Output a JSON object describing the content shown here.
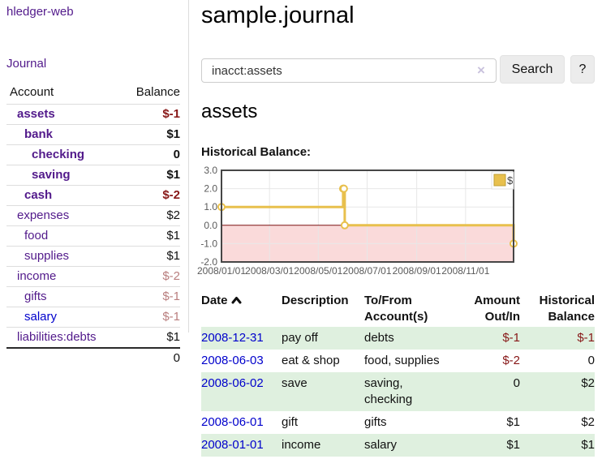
{
  "app": {
    "brand": "hledger-web"
  },
  "colors": {
    "link_purple": "#521a8b",
    "link_blue": "#0000cc",
    "negative_strong": "#871717",
    "negative_soft": "#b97e7e",
    "row_stripe_green": "#dff0df",
    "chart_gold": "#e8c04d",
    "chart_negative_region": "#fadada",
    "chart_zero_line": "#7d1010"
  },
  "sidebar": {
    "nav_journal": "Journal",
    "table": {
      "headers": {
        "account": "Account",
        "balance": "Balance"
      },
      "rows": [
        {
          "account": "assets",
          "balance": "$-1",
          "level": 0,
          "strong": true,
          "link": "purple",
          "bal": "neg-strong"
        },
        {
          "account": "bank",
          "balance": "$1",
          "level": 1,
          "strong": true,
          "link": "purple",
          "bal": "pos"
        },
        {
          "account": "checking",
          "balance": "0",
          "level": 2,
          "strong": true,
          "link": "purple",
          "bal": "pos"
        },
        {
          "account": "saving",
          "balance": "$1",
          "level": 2,
          "strong": true,
          "link": "purple",
          "bal": "pos"
        },
        {
          "account": "cash",
          "balance": "$-2",
          "level": 1,
          "strong": true,
          "link": "purple",
          "bal": "neg-strong"
        },
        {
          "account": "expenses",
          "balance": "$2",
          "level": 0,
          "strong": false,
          "link": "purple",
          "bal": "pos"
        },
        {
          "account": "food",
          "balance": "$1",
          "level": 1,
          "strong": false,
          "link": "purple",
          "bal": "pos"
        },
        {
          "account": "supplies",
          "balance": "$1",
          "level": 1,
          "strong": false,
          "link": "purple",
          "bal": "pos"
        },
        {
          "account": "income",
          "balance": "$-2",
          "level": 0,
          "strong": false,
          "link": "purple",
          "bal": "neg-soft"
        },
        {
          "account": "gifts",
          "balance": "$-1",
          "level": 1,
          "strong": false,
          "link": "purple",
          "bal": "neg-soft"
        },
        {
          "account": "salary",
          "balance": "$-1",
          "level": 1,
          "strong": false,
          "link": "blue",
          "bal": "neg-soft"
        },
        {
          "account": "liabilities:debts",
          "balance": "$1",
          "level": 0,
          "strong": false,
          "link": "purple",
          "bal": "pos"
        }
      ],
      "total": "0"
    }
  },
  "main": {
    "title": "sample.journal",
    "search": {
      "value": "inacct:assets",
      "clear_icon": "×",
      "button_label": "Search",
      "help_label": "?"
    },
    "account_heading": "assets",
    "chart_label": "Historical Balance:",
    "register": {
      "headers": {
        "date": "Date",
        "description": "Description",
        "tofrom1": "To/From",
        "tofrom2": "Account(s)",
        "amount1": "Amount",
        "amount2": "Out/In",
        "hist1": "Historical",
        "hist2": "Balance"
      },
      "rows": [
        {
          "date": "2008-12-31",
          "description": "pay off",
          "accounts": "debts",
          "amount": "$-1",
          "amount_neg": true,
          "balance": "$-1",
          "balance_neg": true
        },
        {
          "date": "2008-06-03",
          "description": "eat & shop",
          "accounts": "food, supplies",
          "amount": "$-2",
          "amount_neg": true,
          "balance": "0",
          "balance_neg": false
        },
        {
          "date": "2008-06-02",
          "description": "save",
          "accounts": "saving, checking",
          "amount": "0",
          "amount_neg": false,
          "balance": "$2",
          "balance_neg": false
        },
        {
          "date": "2008-06-01",
          "description": "gift",
          "accounts": "gifts",
          "amount": "$1",
          "amount_neg": false,
          "balance": "$2",
          "balance_neg": false
        },
        {
          "date": "2008-01-01",
          "description": "income",
          "accounts": "salary",
          "amount": "$1",
          "amount_neg": false,
          "balance": "$1",
          "balance_neg": false
        }
      ]
    }
  },
  "chart_data": {
    "type": "line",
    "style": "step-after",
    "title": "Historical Balance:",
    "series": [
      {
        "name": "$",
        "color": "#e8c04d",
        "points": [
          [
            "2008-01-01",
            1
          ],
          [
            "2008-06-01",
            2
          ],
          [
            "2008-06-02",
            2
          ],
          [
            "2008-06-03",
            0
          ],
          [
            "2008-12-31",
            -1
          ]
        ]
      }
    ],
    "xlim": [
      "2008-01-01",
      "2008-12-31"
    ],
    "ylim": [
      -2,
      3
    ],
    "x_ticks": [
      {
        "date": "2008-01-01",
        "label": "2008/01/01"
      },
      {
        "date": "2008-03-01",
        "label": "2008/03/01"
      },
      {
        "date": "2008-05-01",
        "label": "2008/05/01"
      },
      {
        "date": "2008-07-01",
        "label": "2008/07/01"
      },
      {
        "date": "2008-09-01",
        "label": "2008/09/01"
      },
      {
        "date": "2008-11-01",
        "label": "2008/11/01"
      }
    ],
    "y_ticks": [
      "3.0",
      "2.0",
      "1.0",
      "0.0",
      "-1.0",
      "-2.0"
    ],
    "grid": true,
    "legend": {
      "label": "$",
      "position": "top-right"
    },
    "negative_region_color": "#fadada",
    "zero_line_color": "#7d1010"
  }
}
